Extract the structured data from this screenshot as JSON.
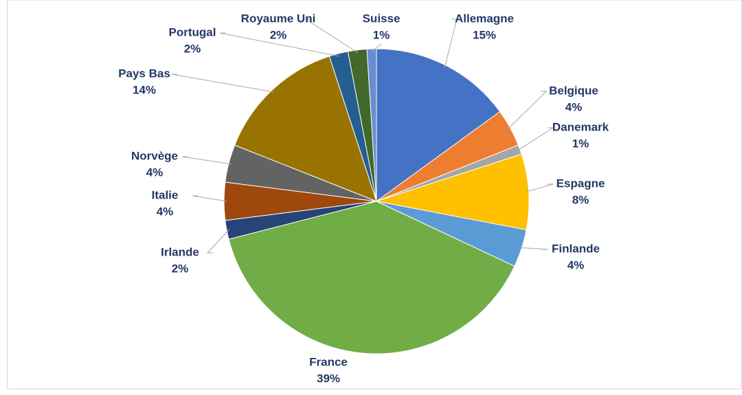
{
  "chart_data": {
    "type": "pie",
    "categories": [
      "Allemagne",
      "Belgique",
      "Danemark",
      "Espagne",
      "Finlande",
      "France",
      "Irlande",
      "Italie",
      "Norvège",
      "Pays Bas",
      "Portugal",
      "Royaume Uni",
      "Suisse"
    ],
    "values": [
      15,
      4,
      1,
      8,
      4,
      39,
      2,
      4,
      4,
      14,
      2,
      2,
      1
    ],
    "value_labels": [
      "15%",
      "4%",
      "1%",
      "8%",
      "4%",
      "39%",
      "2%",
      "4%",
      "4%",
      "14%",
      "2%",
      "2%",
      "1%"
    ],
    "colors": [
      "#4472c4",
      "#ed7d31",
      "#a5a5a5",
      "#ffc000",
      "#5b9bd5",
      "#70ad47",
      "#264478",
      "#9e480e",
      "#636363",
      "#997300",
      "#255e91",
      "#43682b",
      "#698ed0"
    ]
  }
}
